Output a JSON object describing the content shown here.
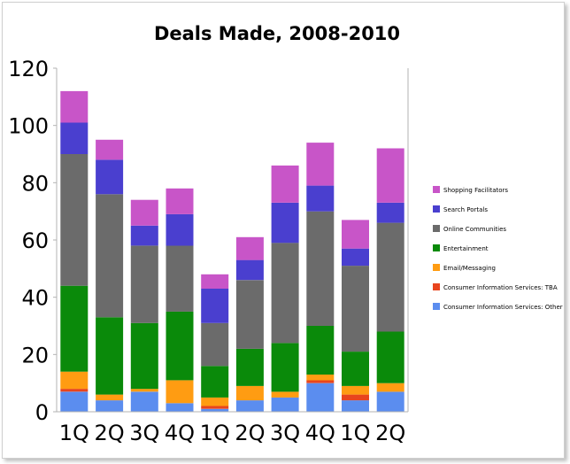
{
  "chart_data": {
    "type": "bar",
    "stacked": true,
    "title": "Deals Made, 2008-2010",
    "xlabel": "",
    "ylabel": "",
    "categories": [
      "1Q",
      "2Q",
      "3Q",
      "4Q",
      "1Q",
      "2Q",
      "3Q",
      "4Q",
      "1Q",
      "2Q"
    ],
    "ylim": [
      0,
      120
    ],
    "yticks": [
      0,
      20,
      40,
      60,
      80,
      100,
      120
    ],
    "grid": false,
    "legend_position": "right",
    "series": [
      {
        "name": "Consumer Information Services: Other",
        "color": "#5b8def",
        "values": [
          7,
          4,
          7,
          3,
          1,
          4,
          5,
          10,
          4,
          7
        ]
      },
      {
        "name": "Consumer Information Services: TBA",
        "color": "#e8451e",
        "values": [
          1,
          0,
          0,
          0,
          1,
          0,
          0,
          1,
          2,
          0
        ]
      },
      {
        "name": "Email/Messaging",
        "color": "#ff9c12",
        "values": [
          6,
          2,
          1,
          8,
          3,
          5,
          2,
          2,
          3,
          3
        ]
      },
      {
        "name": "Entertainment",
        "color": "#0a8a0a",
        "values": [
          30,
          27,
          23,
          24,
          11,
          13,
          17,
          17,
          12,
          18
        ]
      },
      {
        "name": "Online Communities",
        "color": "#6b6b6b",
        "values": [
          46,
          43,
          27,
          23,
          15,
          24,
          35,
          40,
          30,
          38
        ]
      },
      {
        "name": "Search Portals",
        "color": "#4a3fcf",
        "values": [
          11,
          12,
          7,
          11,
          12,
          7,
          14,
          9,
          6,
          7
        ]
      },
      {
        "name": "Shopping Facilitators",
        "color": "#c855c8",
        "values": [
          11,
          7,
          9,
          9,
          5,
          8,
          13,
          15,
          10,
          19
        ]
      }
    ]
  }
}
